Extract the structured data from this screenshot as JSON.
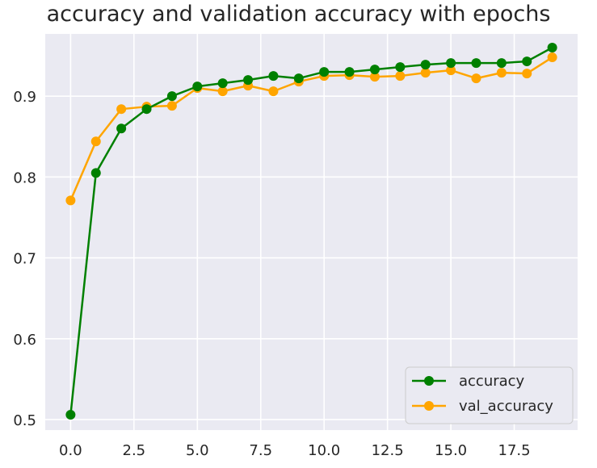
{
  "chart_data": {
    "type": "line",
    "title": "accuracy and validation accuracy with epochs",
    "xlabel": "",
    "ylabel": "",
    "xlim": [
      -1.0,
      20.0
    ],
    "ylim": [
      0.487,
      0.977
    ],
    "xticks": [
      0.0,
      2.5,
      5.0,
      7.5,
      10.0,
      12.5,
      15.0,
      17.5
    ],
    "xtick_labels": [
      "0.0",
      "2.5",
      "5.0",
      "7.5",
      "10.0",
      "12.5",
      "15.0",
      "17.5"
    ],
    "yticks": [
      0.5,
      0.6,
      0.7,
      0.8,
      0.9
    ],
    "ytick_labels": [
      "0.5",
      "0.6",
      "0.7",
      "0.8",
      "0.9"
    ],
    "grid": true,
    "legend_position": "bottom-right",
    "x": [
      0,
      1,
      2,
      3,
      4,
      5,
      6,
      7,
      8,
      9,
      10,
      11,
      12,
      13,
      14,
      15,
      16,
      17,
      18,
      19
    ],
    "series": [
      {
        "name": "accuracy",
        "color": "#008000",
        "values": [
          0.506,
          0.805,
          0.86,
          0.884,
          0.9,
          0.912,
          0.916,
          0.92,
          0.925,
          0.922,
          0.93,
          0.93,
          0.933,
          0.936,
          0.939,
          0.941,
          0.941,
          0.941,
          0.943,
          0.96
        ]
      },
      {
        "name": "val_accuracy",
        "color": "#FFA500",
        "values": [
          0.771,
          0.844,
          0.884,
          0.887,
          0.888,
          0.91,
          0.906,
          0.913,
          0.906,
          0.918,
          0.925,
          0.926,
          0.924,
          0.925,
          0.929,
          0.932,
          0.922,
          0.929,
          0.928,
          0.948
        ]
      }
    ]
  }
}
